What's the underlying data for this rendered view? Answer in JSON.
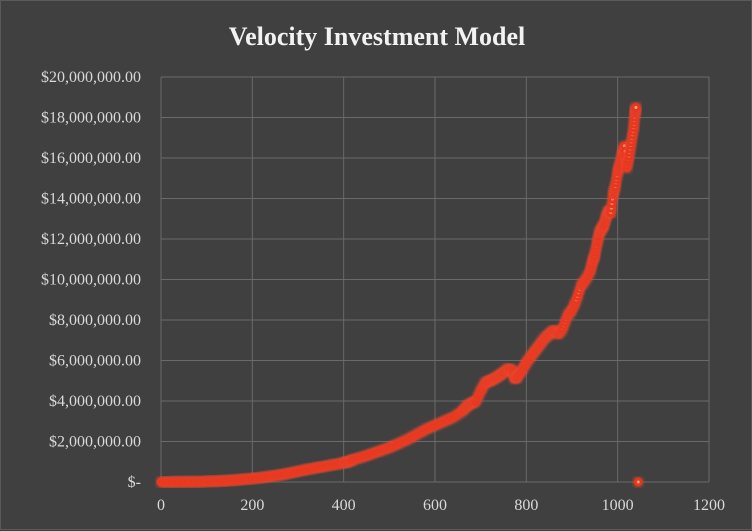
{
  "chart_data": {
    "type": "scatter",
    "title": "Velocity Investment Model",
    "xlabel": "",
    "ylabel": "",
    "xlim": [
      0,
      1200
    ],
    "ylim": [
      0,
      20000000
    ],
    "x_ticks": [
      "0",
      "200",
      "400",
      "600",
      "800",
      "1000",
      "1200"
    ],
    "y_ticks": [
      "$-",
      "$2,000,000.00",
      "$4,000,000.00",
      "$6,000,000.00",
      "$8,000,000.00",
      "$10,000,000.00",
      "$12,000,000.00",
      "$14,000,000.00",
      "$16,000,000.00",
      "$18,000,000.00",
      "$20,000,000.00"
    ],
    "grid": true,
    "legend": "none",
    "marker_color": "#f4a582",
    "glow_color": "#e8341c",
    "series": [
      {
        "points": [
          [
            0,
            0
          ],
          [
            20,
            0
          ],
          [
            40,
            5000
          ],
          [
            60,
            10000
          ],
          [
            80,
            15000
          ],
          [
            100,
            25000
          ],
          [
            120,
            40000
          ],
          [
            140,
            60000
          ],
          [
            160,
            90000
          ],
          [
            180,
            130000
          ],
          [
            200,
            170000
          ],
          [
            220,
            220000
          ],
          [
            240,
            280000
          ],
          [
            260,
            350000
          ],
          [
            280,
            430000
          ],
          [
            300,
            520000
          ],
          [
            320,
            620000
          ],
          [
            340,
            700000
          ],
          [
            360,
            780000
          ],
          [
            380,
            860000
          ],
          [
            400,
            950000
          ],
          [
            410,
            1000000
          ],
          [
            420,
            1100000
          ],
          [
            440,
            1230000
          ],
          [
            460,
            1380000
          ],
          [
            480,
            1540000
          ],
          [
            500,
            1700000
          ],
          [
            520,
            1900000
          ],
          [
            540,
            2100000
          ],
          [
            560,
            2350000
          ],
          [
            580,
            2600000
          ],
          [
            600,
            2800000
          ],
          [
            620,
            3000000
          ],
          [
            640,
            3200000
          ],
          [
            660,
            3500000
          ],
          [
            670,
            3750000
          ],
          [
            680,
            3900000
          ],
          [
            690,
            4000000
          ],
          [
            700,
            4500000
          ],
          [
            710,
            4900000
          ],
          [
            720,
            5000000
          ],
          [
            730,
            5100000
          ],
          [
            740,
            5250000
          ],
          [
            750,
            5400000
          ],
          [
            760,
            5600000
          ],
          [
            770,
            5500000
          ],
          [
            775,
            5100000
          ],
          [
            780,
            5200000
          ],
          [
            790,
            5500000
          ],
          [
            800,
            5900000
          ],
          [
            810,
            6200000
          ],
          [
            820,
            6500000
          ],
          [
            830,
            6800000
          ],
          [
            840,
            7100000
          ],
          [
            850,
            7300000
          ],
          [
            860,
            7500000
          ],
          [
            870,
            7300000
          ],
          [
            880,
            7600000
          ],
          [
            890,
            8200000
          ],
          [
            900,
            8500000
          ],
          [
            910,
            9000000
          ],
          [
            920,
            9700000
          ],
          [
            930,
            10000000
          ],
          [
            940,
            10400000
          ],
          [
            945,
            10900000
          ],
          [
            950,
            11200000
          ],
          [
            955,
            11800000
          ],
          [
            960,
            12300000
          ],
          [
            965,
            12500000
          ],
          [
            970,
            12700000
          ],
          [
            975,
            13100000
          ],
          [
            980,
            13400000
          ],
          [
            985,
            13300000
          ],
          [
            990,
            14200000
          ],
          [
            995,
            14600000
          ],
          [
            1000,
            15300000
          ],
          [
            1005,
            15700000
          ],
          [
            1010,
            16200000
          ],
          [
            1015,
            16600000
          ],
          [
            1020,
            15500000
          ],
          [
            1025,
            16100000
          ],
          [
            1030,
            16800000
          ],
          [
            1035,
            17500000
          ],
          [
            1038,
            18200000
          ],
          [
            1040,
            18500000
          ],
          [
            1045,
            0
          ]
        ]
      }
    ]
  }
}
